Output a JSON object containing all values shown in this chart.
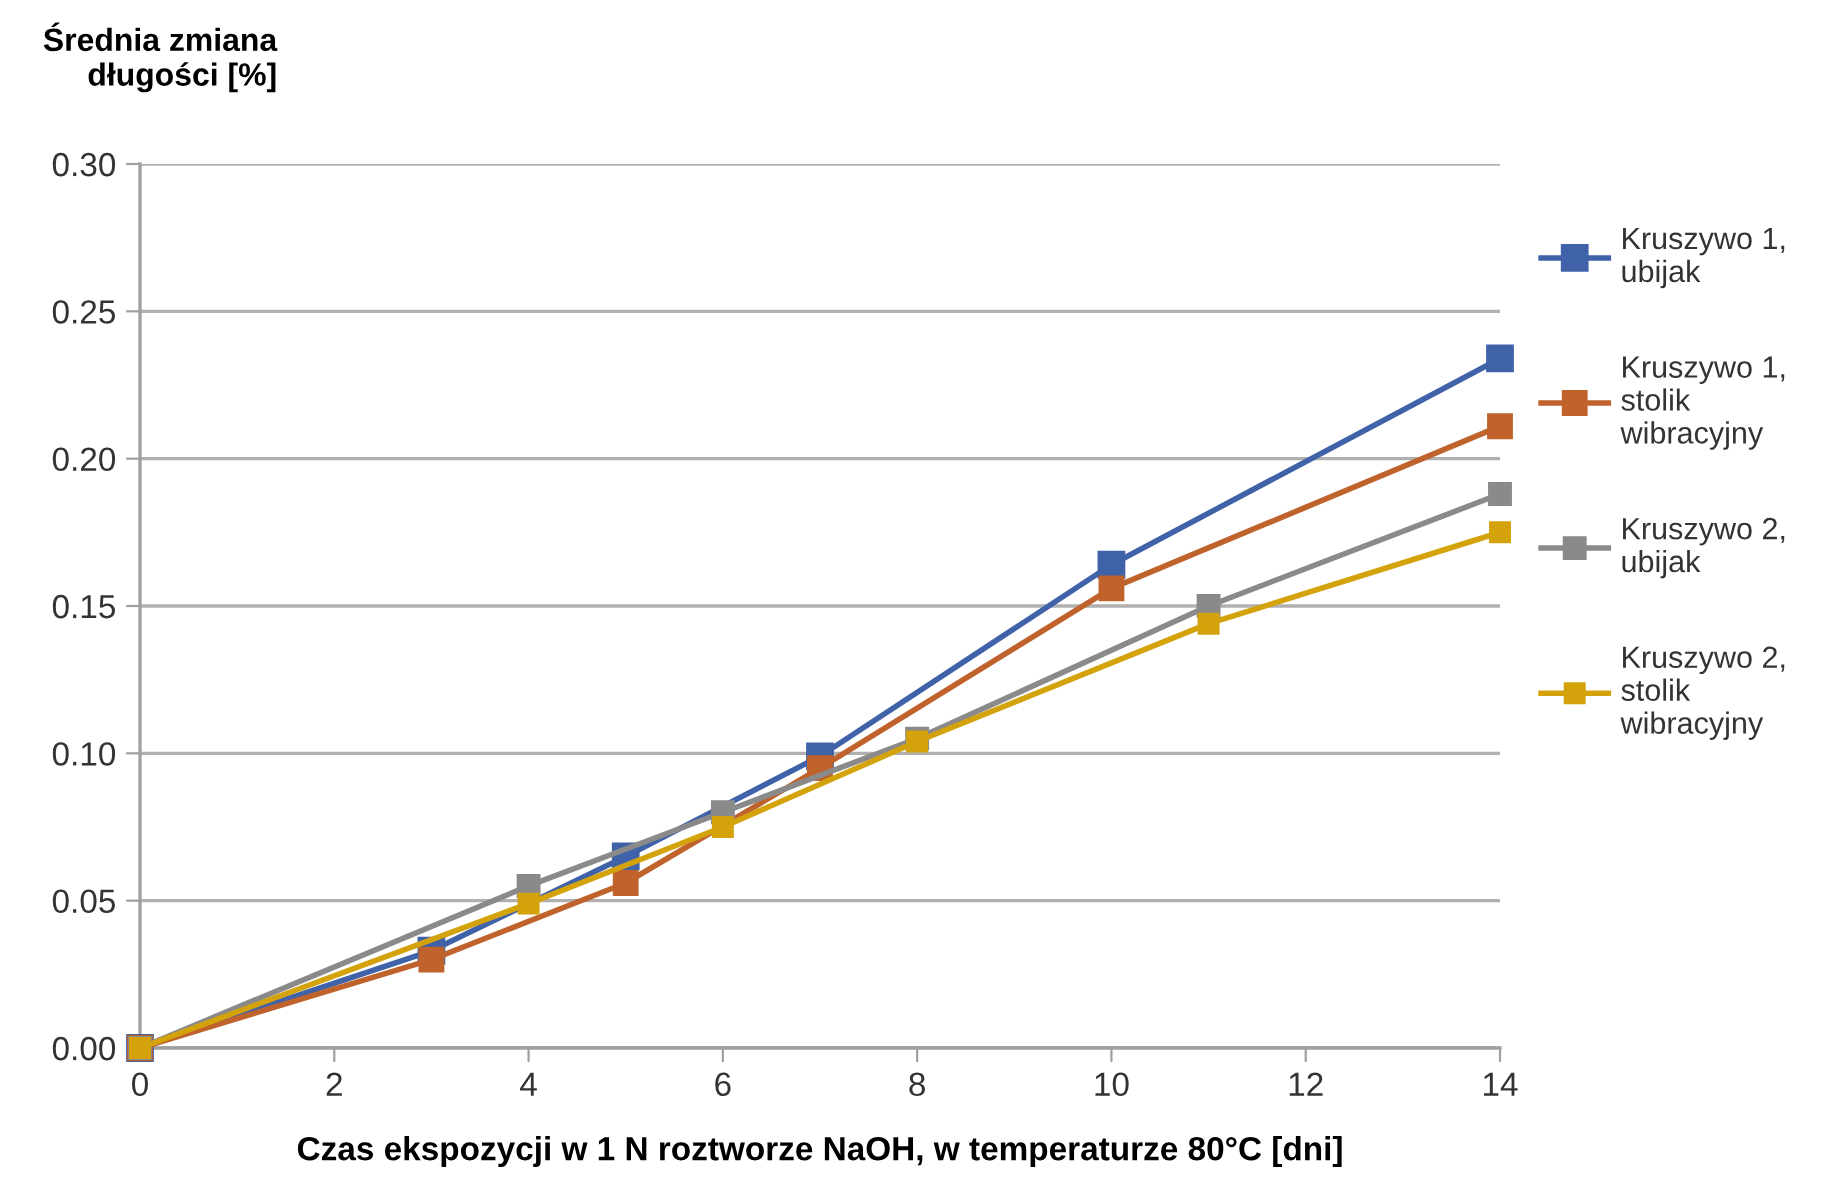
{
  "chart_data": {
    "type": "line",
    "ylabel": "Średnia zmiana\ndługości [%]",
    "xlabel": "Czas ekspozycji w 1 N roztworze NaOH, w temperaturze 80°C [dni]",
    "xlim": [
      0,
      14
    ],
    "xticks": [
      0,
      2,
      4,
      6,
      8,
      10,
      12,
      14
    ],
    "ylim": [
      0,
      0.3
    ],
    "yticks": [
      {
        "value": 0,
        "label": "0.00"
      },
      {
        "value": 0.05,
        "label": "0.05"
      },
      {
        "value": 0.1,
        "label": "0.10"
      },
      {
        "value": 0.15,
        "label": "0.15"
      },
      {
        "value": 0.2,
        "label": "0.20"
      },
      {
        "value": 0.25,
        "label": "0.25"
      },
      {
        "value": 0.3,
        "label": "0.30"
      }
    ],
    "grid": "y",
    "legend": "right",
    "marker": "square",
    "line_style": "solid",
    "series": [
      {
        "name": "Kruszywo 1,\nubijak",
        "color": "#3f62a8",
        "x": [
          0,
          3,
          5,
          7,
          10,
          14
        ],
        "values": [
          0,
          0.033,
          0.065,
          0.099,
          0.164,
          0.234
        ]
      },
      {
        "name": "Kruszywo 1,\nstolik\nwibracyjny",
        "color": "#c0622b",
        "x": [
          0,
          3,
          5,
          7,
          10,
          14
        ],
        "values": [
          0,
          0.03,
          0.056,
          0.095,
          0.156,
          0.211
        ]
      },
      {
        "name": "Kruszywo 2,\nubijak",
        "color": "#8a8a8a",
        "x": [
          0,
          4,
          6,
          8,
          11,
          14
        ],
        "values": [
          0,
          0.055,
          0.08,
          0.105,
          0.15,
          0.188
        ]
      },
      {
        "name": "Kruszywo 2,\nstolik\nwibracyjny",
        "color": "#d4a20a",
        "x": [
          0,
          4,
          6,
          8,
          11,
          14
        ],
        "values": [
          0,
          0.049,
          0.075,
          0.104,
          0.144,
          0.175
        ]
      }
    ]
  }
}
